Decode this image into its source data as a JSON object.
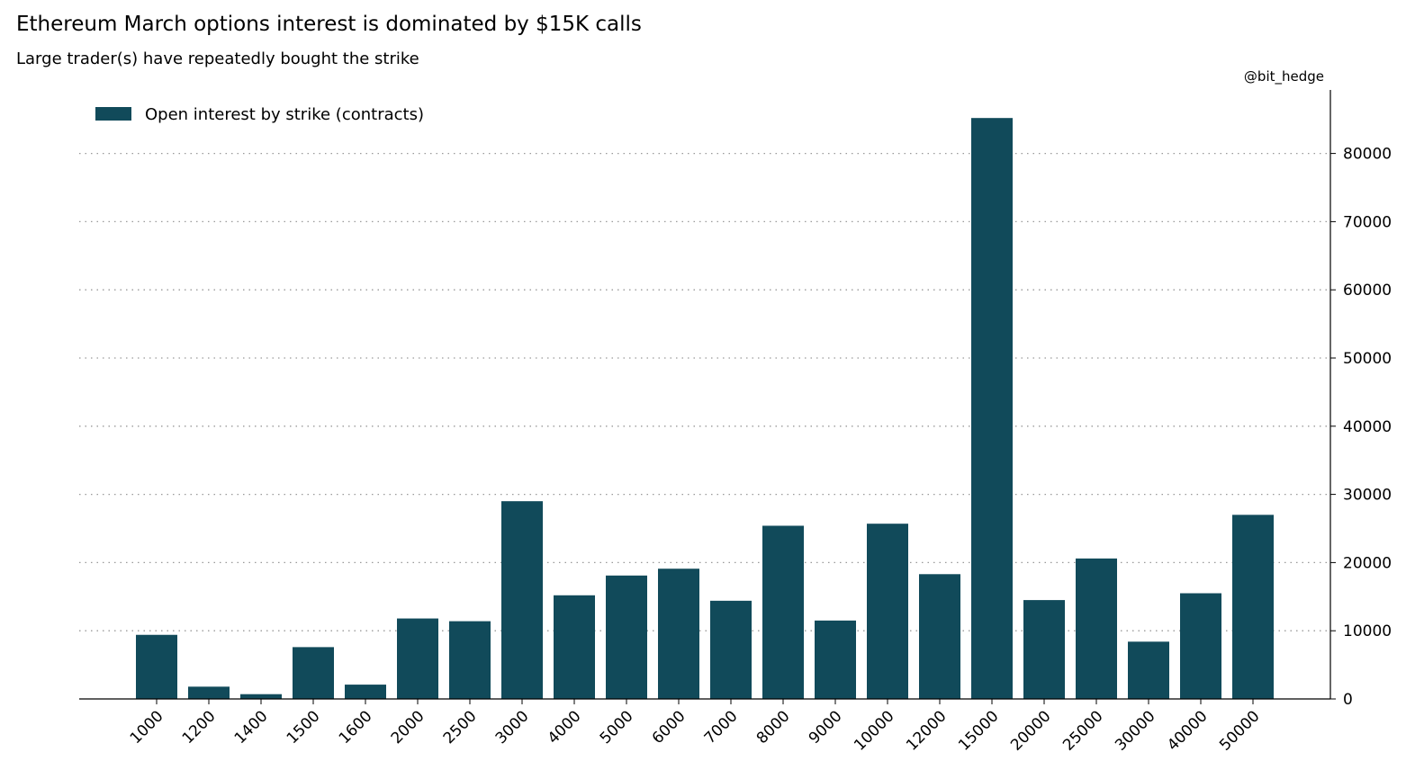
{
  "header": {
    "title": "Ethereum March options interest is dominated by $15K calls",
    "subtitle": "Large trader(s) have repeatedly bought the strike",
    "credit": "@bit_hedge"
  },
  "colors": {
    "bar": "#114a5a",
    "grid": "#999999",
    "axis": "#000000"
  },
  "chart_data": {
    "type": "bar",
    "title": "Ethereum March options interest is dominated by $15K calls",
    "subtitle": "Large trader(s) have repeatedly bought the strike",
    "xlabel": "",
    "ylabel": "",
    "categories": [
      "1000",
      "1200",
      "1400",
      "1500",
      "1600",
      "2000",
      "2500",
      "3000",
      "4000",
      "5000",
      "6000",
      "7000",
      "8000",
      "9000",
      "10000",
      "12000",
      "15000",
      "20000",
      "25000",
      "30000",
      "40000",
      "50000"
    ],
    "series": [
      {
        "name": "Open interest by strike (contracts)",
        "values": [
          9400,
          1800,
          700,
          7600,
          2100,
          11800,
          11400,
          29000,
          15200,
          18100,
          19100,
          14400,
          25400,
          11500,
          25700,
          18300,
          85200,
          14500,
          20600,
          8400,
          15500,
          27000
        ]
      }
    ],
    "ylim": [
      0,
      89000
    ],
    "yticks": [
      0,
      10000,
      20000,
      30000,
      40000,
      50000,
      60000,
      70000,
      80000
    ],
    "y_axis_side": "right",
    "grid": "horizontal dotted",
    "legend_position": "top-left",
    "xtick_rotation": -45
  }
}
